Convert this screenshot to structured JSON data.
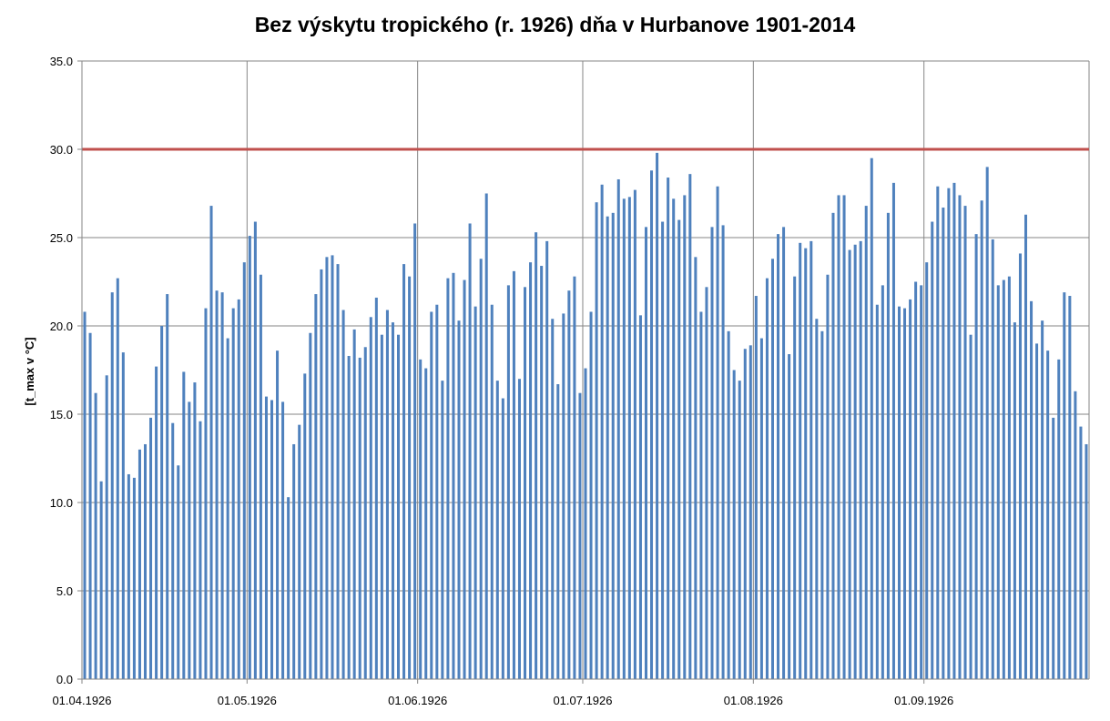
{
  "chart_data": {
    "type": "bar",
    "title": "Bez výskytu tropického (r. 1926) dňa v Hurbanove 1901-2014",
    "ylabel": "[t_max v °C]",
    "xlabel": "",
    "ylim": [
      0,
      35
    ],
    "yticks": [
      "0.0",
      "5.0",
      "10.0",
      "15.0",
      "20.0",
      "25.0",
      "30.0",
      "35.0"
    ],
    "xtick_labels": [
      "01.04.1926",
      "01.05.1926",
      "01.06.1926",
      "01.07.1926",
      "01.08.1926",
      "01.09.1926"
    ],
    "grid": true,
    "legend": "none",
    "threshold": {
      "value": 30.0,
      "color": "#c0504d"
    },
    "bar_color": "#4f81bd",
    "x_start": "01.04.1926",
    "x_end": "30.09.1926",
    "values": [
      20.8,
      19.6,
      16.2,
      11.2,
      17.2,
      21.9,
      22.7,
      18.5,
      11.6,
      11.4,
      13.0,
      13.3,
      14.8,
      17.7,
      20.0,
      21.8,
      14.5,
      12.1,
      17.4,
      15.7,
      16.8,
      14.6,
      21.0,
      26.8,
      22.0,
      21.9,
      19.3,
      21.0,
      21.5,
      23.6,
      25.1,
      25.9,
      22.9,
      16.0,
      15.8,
      18.6,
      15.7,
      10.3,
      13.3,
      14.4,
      17.3,
      19.6,
      21.8,
      23.2,
      23.9,
      24.0,
      23.5,
      20.9,
      18.3,
      19.8,
      18.2,
      18.8,
      20.5,
      21.6,
      19.5,
      20.9,
      20.2,
      19.5,
      23.5,
      22.8,
      25.8,
      18.1,
      17.6,
      20.8,
      21.2,
      16.9,
      22.7,
      23.0,
      20.3,
      22.6,
      25.8,
      21.1,
      23.8,
      27.5,
      21.2,
      16.9,
      15.9,
      22.3,
      23.1,
      17.0,
      22.2,
      23.6,
      25.3,
      23.4,
      24.8,
      20.4,
      16.7,
      20.7,
      22.0,
      22.8,
      16.2,
      17.6,
      20.8,
      27.0,
      28.0,
      26.2,
      26.4,
      28.3,
      27.2,
      27.3,
      27.7,
      20.6,
      25.6,
      28.8,
      29.8,
      25.9,
      28.4,
      27.2,
      26.0,
      27.4,
      28.6,
      23.9,
      20.8,
      22.2,
      25.6,
      27.9,
      25.7,
      19.7,
      17.5,
      16.9,
      18.7,
      18.9,
      21.7,
      19.3,
      22.7,
      23.8,
      25.2,
      25.6,
      18.4,
      22.8,
      24.7,
      24.4,
      24.8,
      20.4,
      19.7,
      22.9,
      26.4,
      27.4,
      27.4,
      24.3,
      24.6,
      24.8,
      26.8,
      29.5,
      21.2,
      22.3,
      26.4,
      28.1,
      21.1,
      21.0,
      21.5,
      22.5,
      22.3,
      23.6,
      25.9,
      27.9,
      26.7,
      27.8,
      28.1,
      27.4,
      26.8,
      19.5,
      25.2,
      27.1,
      29.0,
      24.9,
      22.3,
      22.6,
      22.8,
      20.2,
      24.1,
      26.3,
      21.4,
      19.0,
      20.3,
      18.6,
      14.8,
      18.1,
      21.9,
      21.7,
      16.3,
      14.3,
      13.3
    ]
  }
}
